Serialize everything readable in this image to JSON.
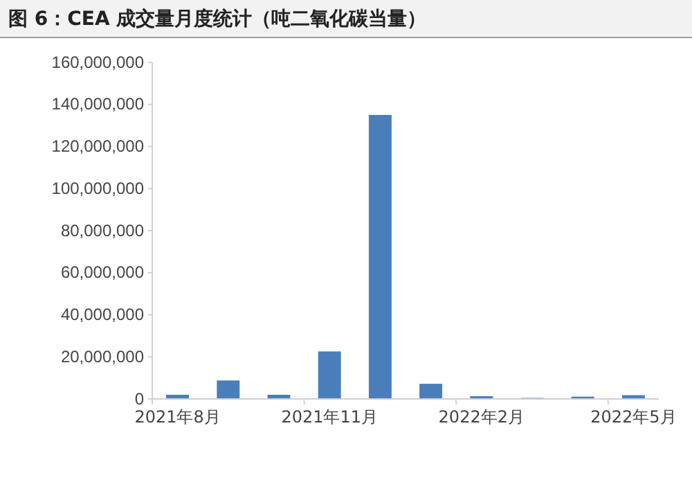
{
  "chart_data": {
    "type": "bar",
    "title": "图 6：CEA 成交量月度统计（吨二氧化碳当量）",
    "categories": [
      "2021年8月",
      null,
      null,
      "2021年11月",
      null,
      null,
      "2022年2月",
      null,
      null,
      "2022年5月"
    ],
    "values": [
      2000000,
      8800000,
      2000000,
      22600000,
      135000000,
      7200000,
      1300000,
      500000,
      1100000,
      1800000
    ],
    "color": "#4a7ebb",
    "ylim": [
      0,
      160000000
    ],
    "yticks": [
      0,
      {
        "value": 20000000,
        "label": "20,000,000"
      },
      {
        "value": 40000000,
        "label": "40,000,000"
      },
      {
        "value": 60000000,
        "label": "60,000,000"
      },
      {
        "value": 80000000,
        "label": "80,000,000"
      },
      {
        "value": 100000000,
        "label": "100,000,000"
      },
      {
        "value": 120000000,
        "label": "120,000,000"
      },
      {
        "value": 140000000,
        "label": "140,000,000"
      },
      {
        "value": 160000000,
        "label": "160,000,000"
      }
    ],
    "grid": false
  }
}
